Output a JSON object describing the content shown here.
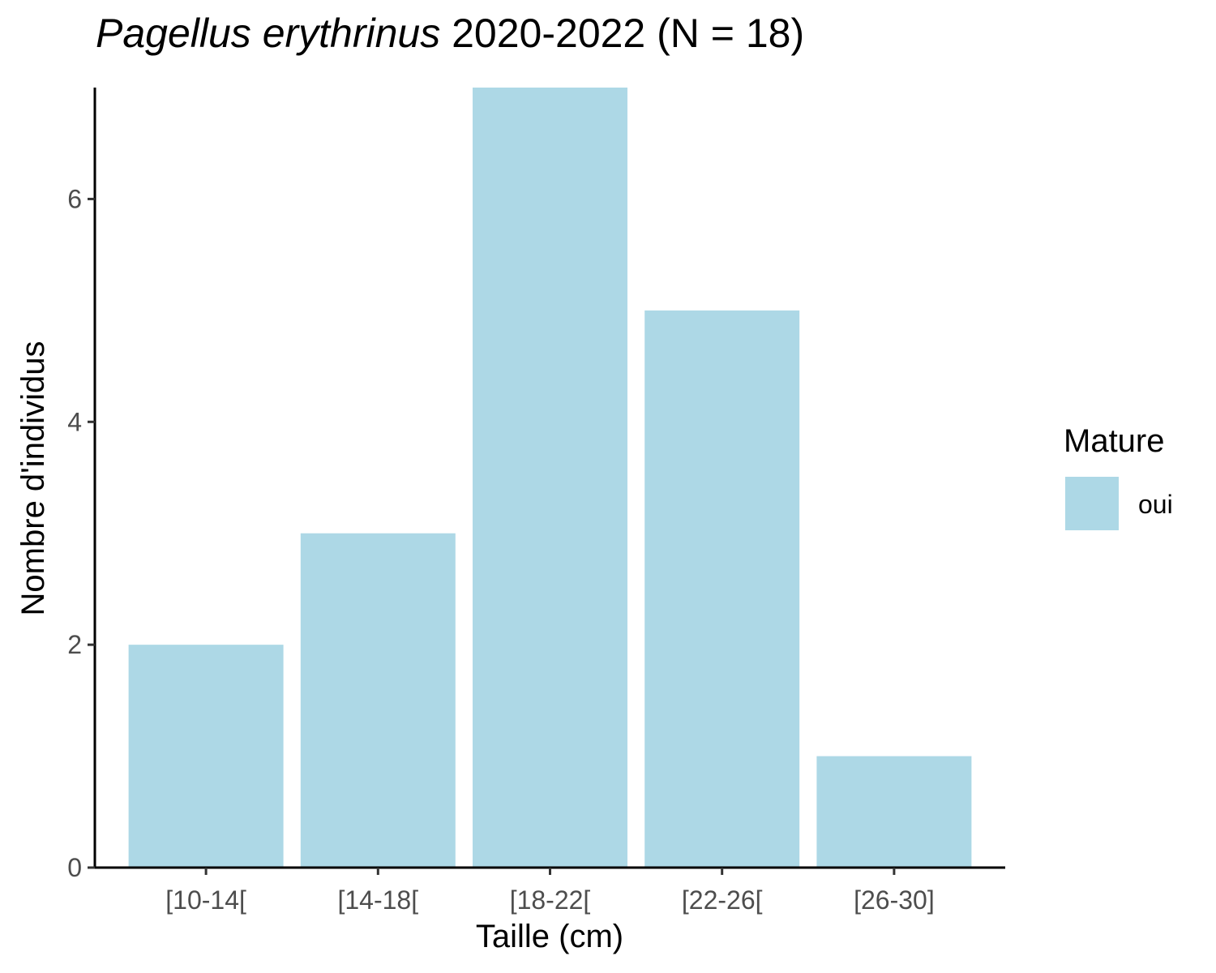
{
  "chart_data": {
    "type": "bar",
    "title_italic": "Pagellus erythrinus",
    "title_rest": " 2020-2022 (N = 18)",
    "xlabel": "Taille (cm)",
    "ylabel": "Nombre d'individus",
    "categories": [
      "[10-14[",
      "[14-18[",
      "[18-22[",
      "[22-26[",
      "[26-30]"
    ],
    "series": [
      {
        "name": "oui",
        "values": [
          2,
          3,
          7,
          5,
          1
        ],
        "color": "#ADD8E6"
      }
    ],
    "ylim": [
      0,
      7
    ],
    "yticks": [
      0,
      2,
      4,
      6
    ],
    "legend": {
      "title": "Mature",
      "position": "right"
    },
    "grid": false
  }
}
